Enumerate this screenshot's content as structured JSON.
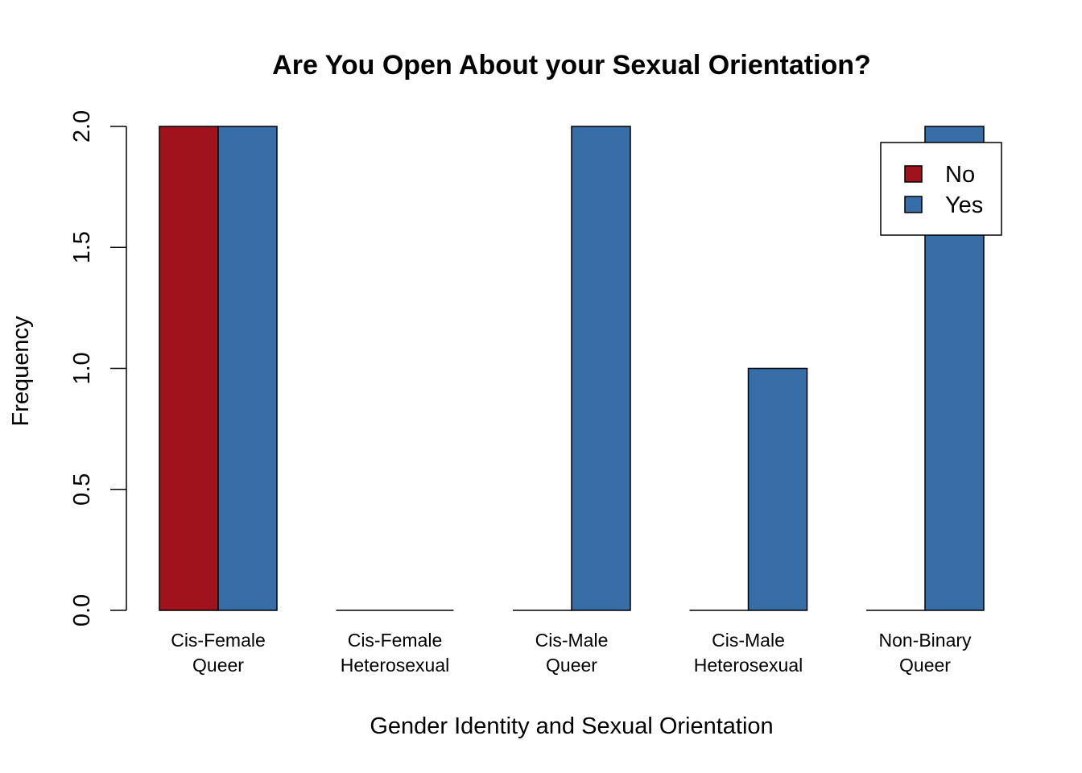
{
  "chart_data": {
    "type": "bar",
    "title": "Are You Open About your Sexual Orientation?",
    "xlabel": "Gender Identity and Sexual Orientation",
    "ylabel": "Frequency",
    "categories": [
      [
        "Cis-Female",
        "Queer"
      ],
      [
        "Cis-Female",
        "Heterosexual"
      ],
      [
        "Cis-Male",
        "Queer"
      ],
      [
        "Cis-Male",
        "Heterosexual"
      ],
      [
        "Non-Binary",
        "Queer"
      ]
    ],
    "series": [
      {
        "name": "No",
        "color": "#a0121c",
        "values": [
          2,
          0,
          0,
          0,
          0
        ]
      },
      {
        "name": "Yes",
        "color": "#386ea8",
        "values": [
          2,
          0,
          2,
          1,
          2
        ]
      }
    ],
    "ylim": [
      0,
      2
    ],
    "yticks": [
      "0.0",
      "0.5",
      "1.0",
      "1.5",
      "2.0"
    ],
    "legend_position": "top-right",
    "grid": false
  }
}
